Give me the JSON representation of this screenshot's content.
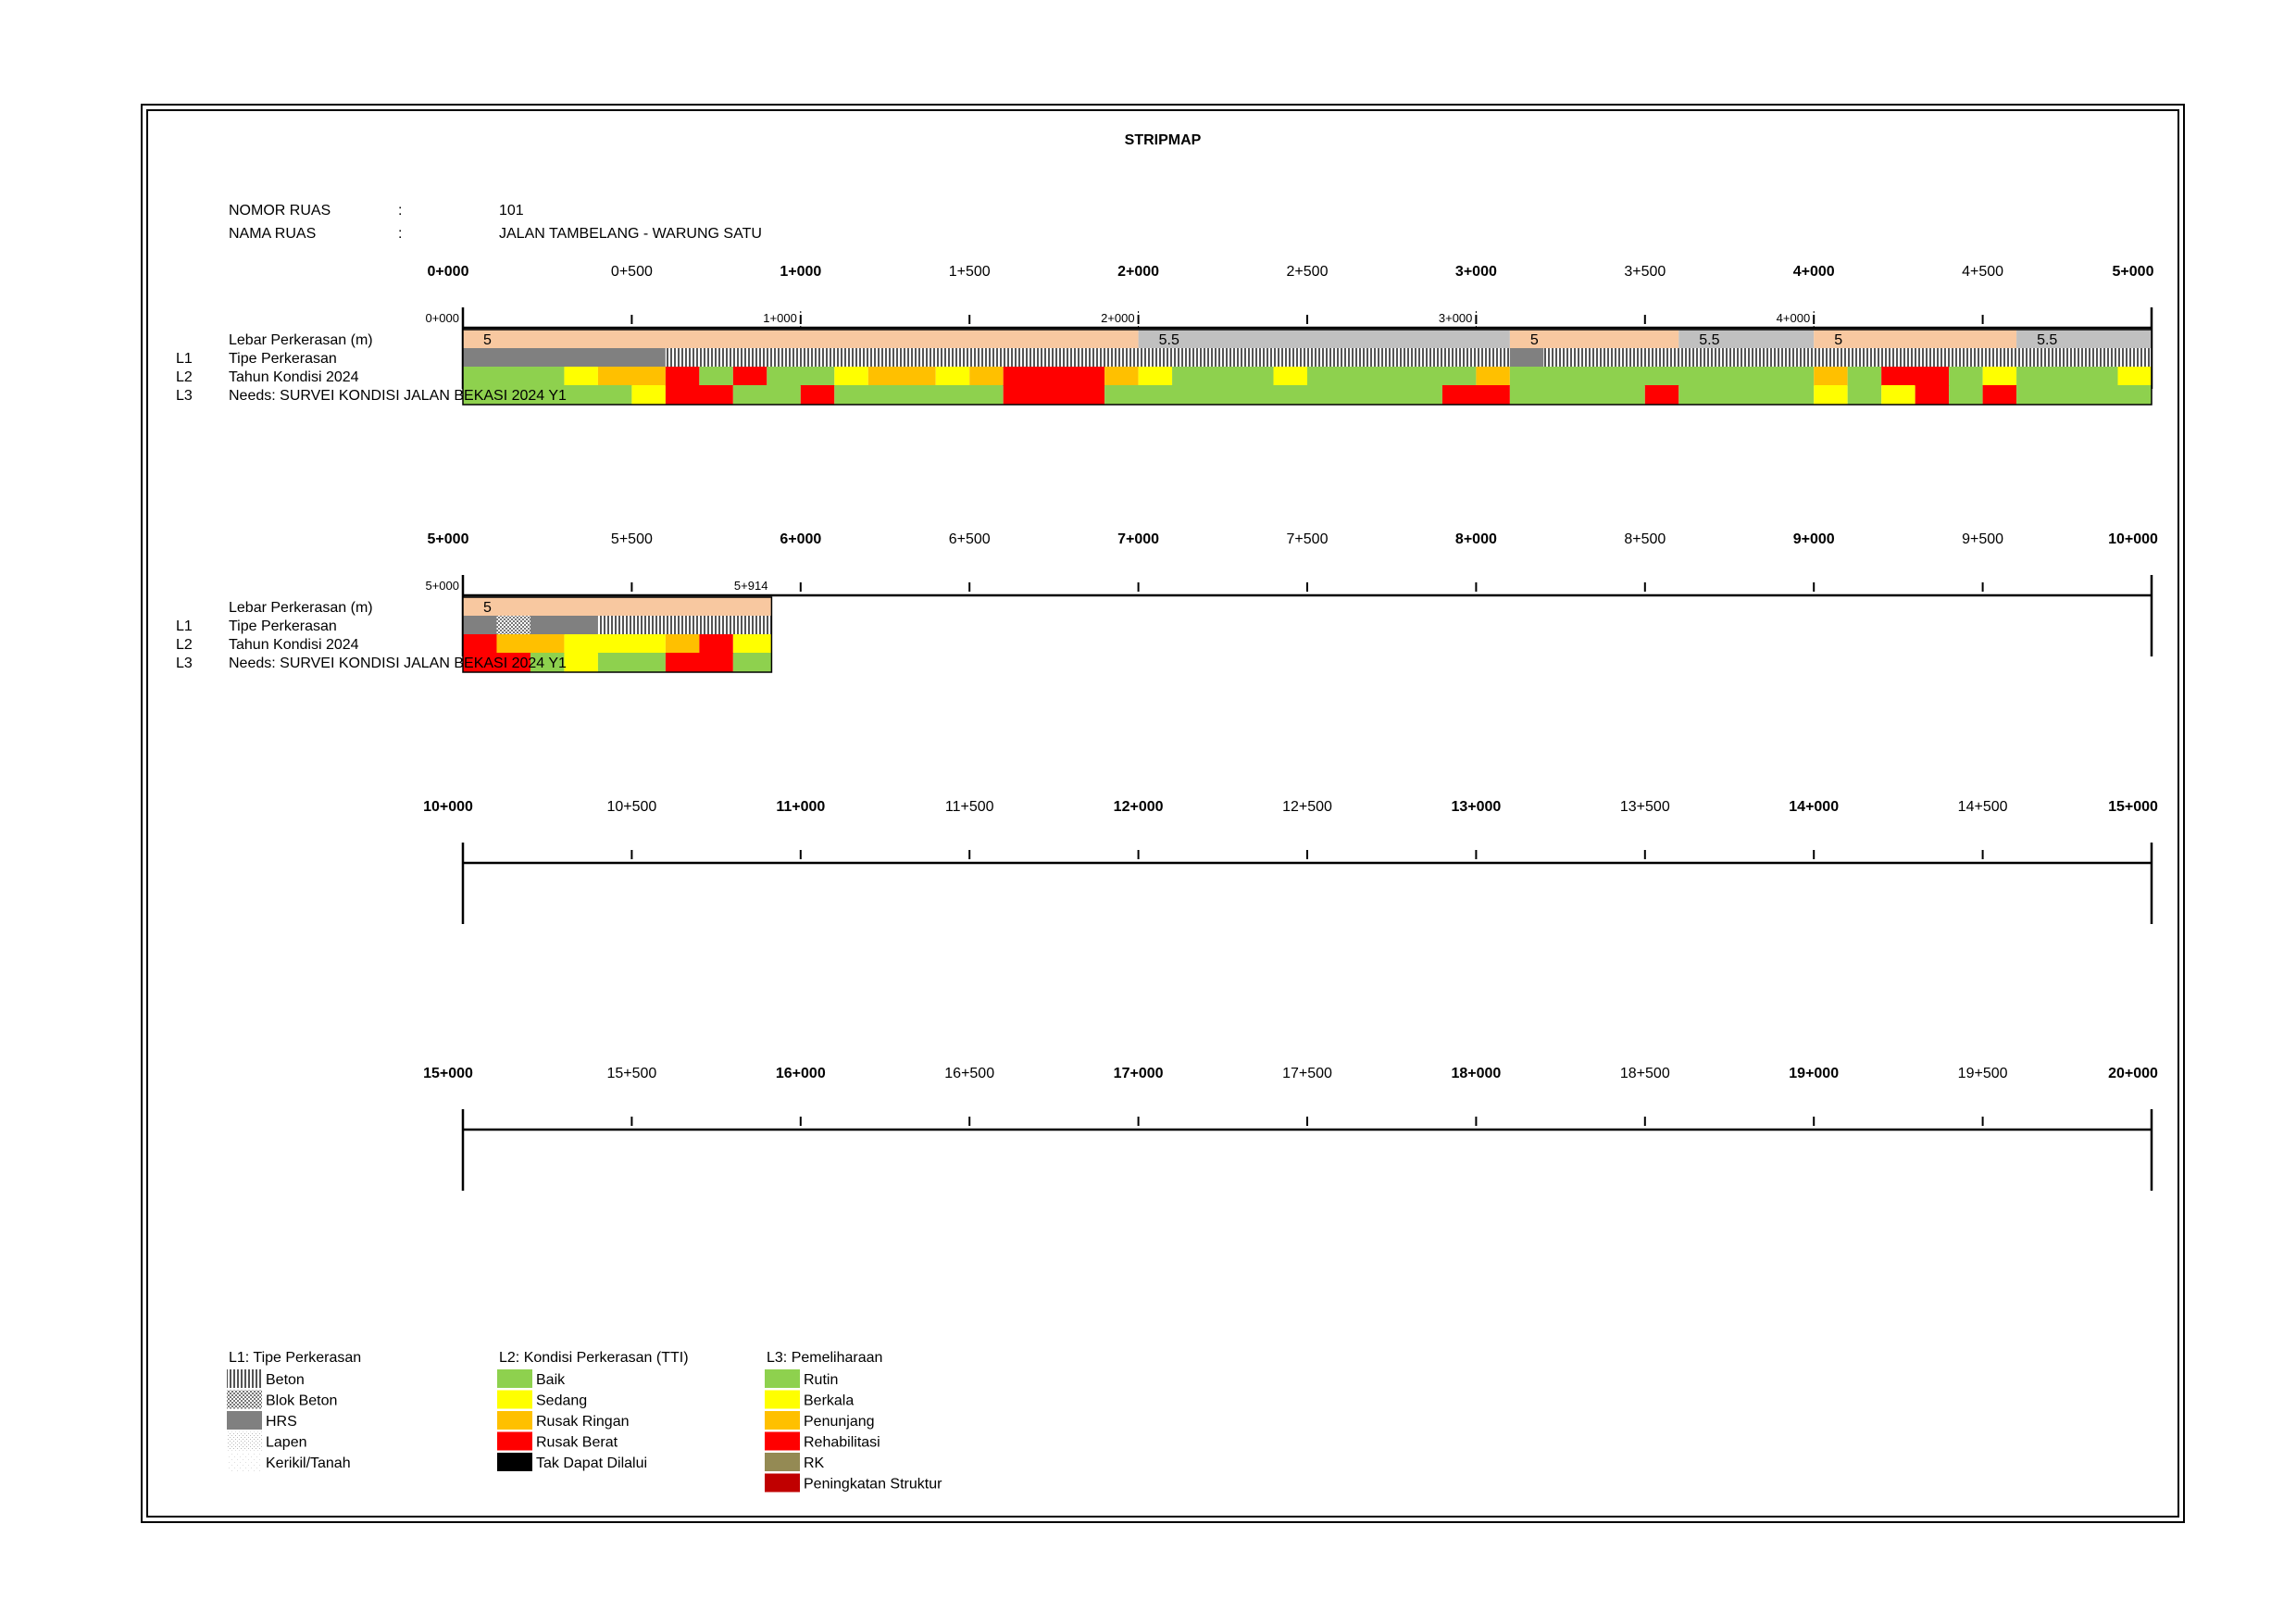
{
  "title": "STRIPMAP",
  "header": {
    "nomor_label": "NOMOR RUAS",
    "nomor_sep": ":",
    "nomor_value": "101",
    "nama_label": "NAMA RUAS",
    "nama_sep": ":",
    "nama_value": "JALAN TAMBELANG - WARUNG SATU"
  },
  "row_labels": {
    "width": "Lebar Perkerasan (m)",
    "l1_code": "L1",
    "l1": "Tipe Perkerasan",
    "l2_code": "L2",
    "l2": "Tahun Kondisi 2024",
    "l3_code": "L3",
    "l3": "Needs: SURVEI KONDISI JALAN BEKASI 2024 Y1"
  },
  "colors": {
    "width_5": "#f8c8a0",
    "width_5_5": "#c0c0c0",
    "hrs": "#808080",
    "beton_stripe": "#555555",
    "baik": "#8ed14e",
    "sedang": "#ffff00",
    "rusak_ringan": "#ffc000",
    "rusak_berat": "#ff0000",
    "tak_dapat_dilalui": "#000000",
    "rutin": "#8ed14e",
    "berkala": "#ffff00",
    "penunjang": "#ffc000",
    "rehabilitasi": "#ff0000",
    "rk": "#948a54",
    "peningkatan_struktur": "#c00000"
  },
  "road": {
    "start_km": 0,
    "end_km": 5.914,
    "end_label": "5+914"
  },
  "scale_rows": [
    {
      "ticks": [
        "0+000",
        "0+500",
        "1+000",
        "1+500",
        "2+000",
        "2+500",
        "3+000",
        "3+500",
        "4+000",
        "4+500",
        "5+000"
      ],
      "data_ticks": [
        "0+000",
        "1+000",
        "2+000",
        "3+000",
        "4+000"
      ],
      "end_label": ""
    },
    {
      "ticks": [
        "5+000",
        "5+500",
        "6+000",
        "6+500",
        "7+000",
        "7+500",
        "8+000",
        "8+500",
        "9+000",
        "9+500",
        "10+000"
      ],
      "data_ticks": [
        "5+000"
      ],
      "end_label": "5+914"
    },
    {
      "ticks": [
        "10+000",
        "10+500",
        "11+000",
        "11+500",
        "12+000",
        "12+500",
        "13+000",
        "13+500",
        "14+000",
        "14+500",
        "15+000"
      ],
      "data_ticks": [],
      "end_label": ""
    },
    {
      "ticks": [
        "15+000",
        "15+500",
        "16+000",
        "16+500",
        "17+000",
        "17+500",
        "18+000",
        "18+500",
        "19+000",
        "19+500",
        "20+000"
      ],
      "data_ticks": [],
      "end_label": ""
    }
  ],
  "segments": {
    "width": [
      {
        "from": 0,
        "to": 2.0,
        "value": "5",
        "cls": "width_5"
      },
      {
        "from": 2.0,
        "to": 3.1,
        "value": "5.5",
        "cls": "width_5_5"
      },
      {
        "from": 3.1,
        "to": 3.6,
        "value": "5",
        "cls": "width_5"
      },
      {
        "from": 3.6,
        "to": 4.0,
        "value": "5.5",
        "cls": "width_5_5"
      },
      {
        "from": 4.0,
        "to": 4.6,
        "value": "5",
        "cls": "width_5"
      },
      {
        "from": 4.6,
        "to": 5.0,
        "value": "5.5",
        "cls": "width_5_5"
      },
      {
        "from": 5.0,
        "to": 5.914,
        "value": "5",
        "cls": "width_5"
      }
    ],
    "l1": [
      {
        "from": 0,
        "to": 0.6,
        "cls": "hrs"
      },
      {
        "from": 0.6,
        "to": 3.1,
        "cls": "beton"
      },
      {
        "from": 3.1,
        "to": 3.2,
        "cls": "hrs"
      },
      {
        "from": 3.2,
        "to": 5.0,
        "cls": "beton"
      },
      {
        "from": 5.0,
        "to": 5.1,
        "cls": "hrs"
      },
      {
        "from": 5.1,
        "to": 5.2,
        "cls": "blok_beton"
      },
      {
        "from": 5.2,
        "to": 5.4,
        "cls": "hrs"
      },
      {
        "from": 5.4,
        "to": 5.914,
        "cls": "beton"
      }
    ],
    "l2": [
      {
        "from": 0,
        "to": 0.3,
        "cls": "baik"
      },
      {
        "from": 0.3,
        "to": 0.4,
        "cls": "sedang"
      },
      {
        "from": 0.4,
        "to": 0.6,
        "cls": "rusak_ringan"
      },
      {
        "from": 0.6,
        "to": 0.7,
        "cls": "rusak_berat"
      },
      {
        "from": 0.7,
        "to": 0.8,
        "cls": "baik"
      },
      {
        "from": 0.8,
        "to": 0.9,
        "cls": "rusak_berat"
      },
      {
        "from": 0.9,
        "to": 1.1,
        "cls": "baik"
      },
      {
        "from": 1.1,
        "to": 1.2,
        "cls": "sedang"
      },
      {
        "from": 1.2,
        "to": 1.4,
        "cls": "rusak_ringan"
      },
      {
        "from": 1.4,
        "to": 1.5,
        "cls": "sedang"
      },
      {
        "from": 1.5,
        "to": 1.6,
        "cls": "rusak_ringan"
      },
      {
        "from": 1.6,
        "to": 1.9,
        "cls": "rusak_berat"
      },
      {
        "from": 1.9,
        "to": 2.0,
        "cls": "rusak_ringan"
      },
      {
        "from": 2.0,
        "to": 2.1,
        "cls": "sedang"
      },
      {
        "from": 2.1,
        "to": 2.4,
        "cls": "baik"
      },
      {
        "from": 2.4,
        "to": 2.5,
        "cls": "sedang"
      },
      {
        "from": 2.5,
        "to": 3.0,
        "cls": "baik"
      },
      {
        "from": 3.0,
        "to": 3.1,
        "cls": "rusak_ringan"
      },
      {
        "from": 3.1,
        "to": 4.0,
        "cls": "baik"
      },
      {
        "from": 4.0,
        "to": 4.1,
        "cls": "rusak_ringan"
      },
      {
        "from": 4.1,
        "to": 4.2,
        "cls": "baik"
      },
      {
        "from": 4.2,
        "to": 4.4,
        "cls": "rusak_berat"
      },
      {
        "from": 4.4,
        "to": 4.5,
        "cls": "baik"
      },
      {
        "from": 4.5,
        "to": 4.6,
        "cls": "sedang"
      },
      {
        "from": 4.6,
        "to": 4.9,
        "cls": "baik"
      },
      {
        "from": 4.9,
        "to": 5.0,
        "cls": "sedang"
      },
      {
        "from": 5.0,
        "to": 5.1,
        "cls": "rusak_berat"
      },
      {
        "from": 5.1,
        "to": 5.3,
        "cls": "rusak_ringan"
      },
      {
        "from": 5.3,
        "to": 5.6,
        "cls": "sedang"
      },
      {
        "from": 5.6,
        "to": 5.7,
        "cls": "rusak_ringan"
      },
      {
        "from": 5.7,
        "to": 5.8,
        "cls": "rusak_berat"
      },
      {
        "from": 5.8,
        "to": 5.914,
        "cls": "sedang"
      }
    ],
    "l3": [
      {
        "from": 0,
        "to": 0.5,
        "cls": "rutin"
      },
      {
        "from": 0.5,
        "to": 0.6,
        "cls": "berkala"
      },
      {
        "from": 0.6,
        "to": 0.8,
        "cls": "rehabilitasi"
      },
      {
        "from": 0.8,
        "to": 1.0,
        "cls": "rutin"
      },
      {
        "from": 1.0,
        "to": 1.1,
        "cls": "rehabilitasi"
      },
      {
        "from": 1.1,
        "to": 1.6,
        "cls": "rutin"
      },
      {
        "from": 1.6,
        "to": 1.9,
        "cls": "rehabilitasi"
      },
      {
        "from": 1.9,
        "to": 2.9,
        "cls": "rutin"
      },
      {
        "from": 2.9,
        "to": 3.1,
        "cls": "rehabilitasi"
      },
      {
        "from": 3.1,
        "to": 3.5,
        "cls": "rutin"
      },
      {
        "from": 3.5,
        "to": 3.6,
        "cls": "rehabilitasi"
      },
      {
        "from": 3.6,
        "to": 4.0,
        "cls": "rutin"
      },
      {
        "from": 4.0,
        "to": 4.1,
        "cls": "berkala"
      },
      {
        "from": 4.1,
        "to": 4.2,
        "cls": "rutin"
      },
      {
        "from": 4.2,
        "to": 4.3,
        "cls": "berkala"
      },
      {
        "from": 4.3,
        "to": 4.4,
        "cls": "rehabilitasi"
      },
      {
        "from": 4.4,
        "to": 4.5,
        "cls": "rutin"
      },
      {
        "from": 4.5,
        "to": 4.6,
        "cls": "rehabilitasi"
      },
      {
        "from": 4.6,
        "to": 5.0,
        "cls": "rutin"
      },
      {
        "from": 5.0,
        "to": 5.2,
        "cls": "rehabilitasi"
      },
      {
        "from": 5.2,
        "to": 5.3,
        "cls": "rutin"
      },
      {
        "from": 5.3,
        "to": 5.4,
        "cls": "berkala"
      },
      {
        "from": 5.4,
        "to": 5.6,
        "cls": "rutin"
      },
      {
        "from": 5.6,
        "to": 5.8,
        "cls": "rehabilitasi"
      },
      {
        "from": 5.8,
        "to": 5.914,
        "cls": "rutin"
      }
    ]
  },
  "legend": {
    "l1": {
      "title": "L1: Tipe Perkerasan",
      "items": [
        {
          "label": "Beton",
          "cls": "beton"
        },
        {
          "label": "Blok Beton",
          "cls": "blok_beton"
        },
        {
          "label": "HRS",
          "cls": "hrs"
        },
        {
          "label": "Lapen",
          "cls": "lapen"
        },
        {
          "label": "Kerikil/Tanah",
          "cls": "kerikil"
        }
      ]
    },
    "l2": {
      "title": "L2: Kondisi Perkerasan (TTI)",
      "items": [
        {
          "label": "Baik",
          "cls": "baik"
        },
        {
          "label": "Sedang",
          "cls": "sedang"
        },
        {
          "label": "Rusak Ringan",
          "cls": "rusak_ringan"
        },
        {
          "label": "Rusak Berat",
          "cls": "rusak_berat"
        },
        {
          "label": "Tak Dapat Dilalui",
          "cls": "tak_dapat_dilalui"
        }
      ]
    },
    "l3": {
      "title": "L3: Pemeliharaan",
      "items": [
        {
          "label": "Rutin",
          "cls": "rutin"
        },
        {
          "label": "Berkala",
          "cls": "berkala"
        },
        {
          "label": "Penunjang",
          "cls": "penunjang"
        },
        {
          "label": "Rehabilitasi",
          "cls": "rehabilitasi"
        },
        {
          "label": "RK",
          "cls": "rk"
        },
        {
          "label": "Peningkatan Struktur",
          "cls": "peningkatan_struktur"
        }
      ]
    }
  }
}
